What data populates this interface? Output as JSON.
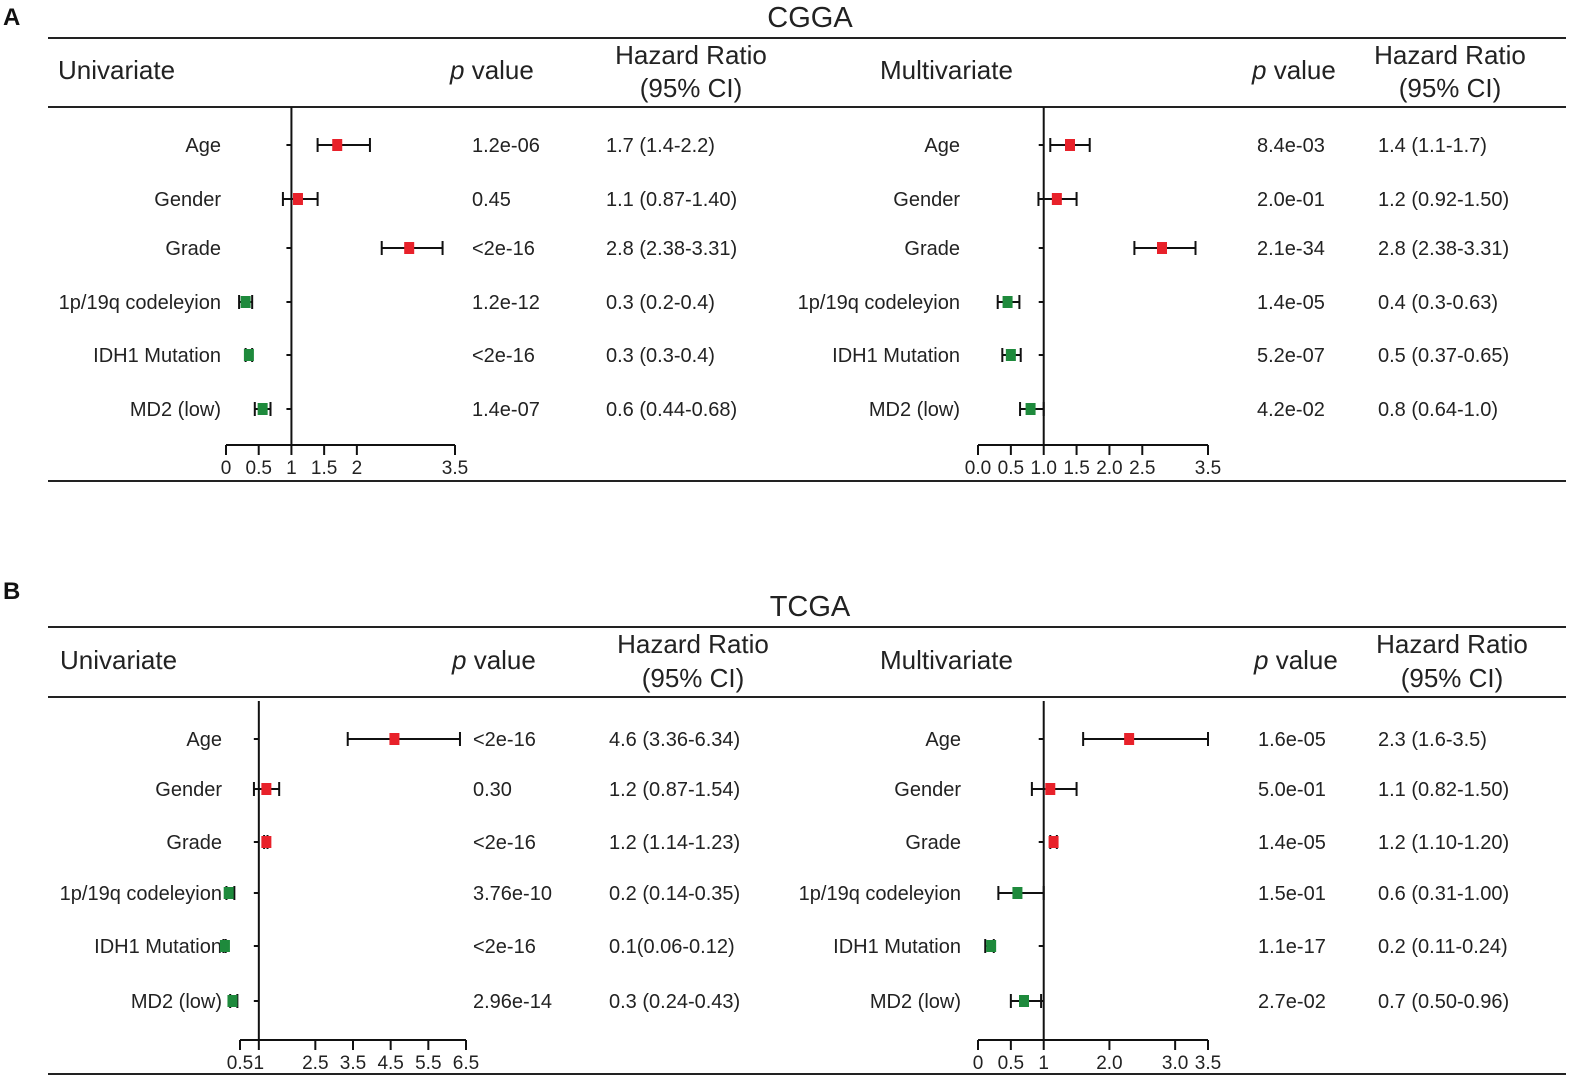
{
  "chart_data": [
    {
      "type": "forest",
      "panel": "A",
      "title": "CGGA",
      "columns": {
        "p": "value",
        "p_symbol": "p",
        "hr": [
          "Hazard Ratio",
          "(95% CI)"
        ]
      },
      "plots": [
        {
          "id": "cgga-uni",
          "header": "Univariate",
          "xlim": [
            0,
            3.5
          ],
          "ref": 1,
          "ticks": [
            "0",
            "0.5",
            "1",
            "1.5",
            "2",
            "3.5"
          ],
          "tick_values": [
            0,
            0.5,
            1,
            1.5,
            2,
            3.5
          ],
          "rows": [
            {
              "label": "Age",
              "hr": 1.7,
              "lo": 1.4,
              "hi": 2.2,
              "p": "1.2e-06",
              "ci_text": "1.7 (1.4-2.2)",
              "color": "#e8212a"
            },
            {
              "label": "Gender",
              "hr": 1.1,
              "lo": 0.87,
              "hi": 1.4,
              "p": "0.45",
              "ci_text": "1.1 (0.87-1.40)",
              "color": "#e8212a"
            },
            {
              "label": "Grade",
              "hr": 2.8,
              "lo": 2.38,
              "hi": 3.31,
              "p": "<2e-16",
              "ci_text": "2.8 (2.38-3.31)",
              "color": "#e8212a"
            },
            {
              "label": "1p/19q codeleyion",
              "hr": 0.3,
              "lo": 0.2,
              "hi": 0.4,
              "p": "1.2e-12",
              "ci_text": "0.3 (0.2-0.4)",
              "color": "#1e8a3c"
            },
            {
              "label": "IDH1 Mutation",
              "hr": 0.35,
              "lo": 0.3,
              "hi": 0.4,
              "p": "<2e-16",
              "ci_text": "0.3 (0.3-0.4)",
              "color": "#1e8a3c"
            },
            {
              "label": "MD2 (low)",
              "hr": 0.56,
              "lo": 0.44,
              "hi": 0.68,
              "p": "1.4e-07",
              "ci_text": "0.6 (0.44-0.68)",
              "color": "#1e8a3c"
            }
          ]
        },
        {
          "id": "cgga-multi",
          "header": "Multivariate",
          "xlim": [
            0,
            3.5
          ],
          "ref": 1,
          "ticks": [
            "0.0",
            "0.5",
            "1.0",
            "1.5",
            "2.0",
            "2.5",
            "3.5"
          ],
          "tick_values": [
            0,
            0.5,
            1,
            1.5,
            2,
            2.5,
            3.5
          ],
          "rows": [
            {
              "label": "Age",
              "hr": 1.4,
              "lo": 1.1,
              "hi": 1.7,
              "p": "8.4e-03",
              "ci_text": "1.4 (1.1-1.7)",
              "color": "#e8212a"
            },
            {
              "label": "Gender",
              "hr": 1.2,
              "lo": 0.92,
              "hi": 1.5,
              "p": "2.0e-01",
              "ci_text": "1.2 (0.92-1.50)",
              "color": "#e8212a"
            },
            {
              "label": "Grade",
              "hr": 2.8,
              "lo": 2.38,
              "hi": 3.31,
              "p": "2.1e-34",
              "ci_text": "2.8 (2.38-3.31)",
              "color": "#e8212a"
            },
            {
              "label": "1p/19q codeleyion",
              "hr": 0.45,
              "lo": 0.3,
              "hi": 0.63,
              "p": "1.4e-05",
              "ci_text": "0.4 (0.3-0.63)",
              "color": "#1e8a3c"
            },
            {
              "label": "IDH1 Mutation",
              "hr": 0.5,
              "lo": 0.37,
              "hi": 0.65,
              "p": "5.2e-07",
              "ci_text": "0.5 (0.37-0.65)",
              "color": "#1e8a3c"
            },
            {
              "label": "MD2 (low)",
              "hr": 0.8,
              "lo": 0.64,
              "hi": 1.0,
              "p": "4.2e-02",
              "ci_text": "0.8 (0.64-1.0)",
              "color": "#1e8a3c"
            }
          ]
        }
      ]
    },
    {
      "type": "forest",
      "panel": "B",
      "title": "TCGA",
      "columns": {
        "p": "value",
        "p_symbol": "p",
        "hr": [
          "Hazard Ratio",
          "(95% CI)"
        ]
      },
      "plots": [
        {
          "id": "tcga-uni",
          "header": "Univariate",
          "xlim": [
            0.5,
            6.5
          ],
          "ref": 1,
          "ticks": [
            "0.5",
            "1",
            "2.5",
            "3.5",
            "4.5",
            "5.5",
            "6.5"
          ],
          "tick_values": [
            0.5,
            1,
            2.5,
            3.5,
            4.5,
            5.5,
            6.5
          ],
          "rows": [
            {
              "label": "Age",
              "hr": 4.6,
              "lo": 3.36,
              "hi": 6.34,
              "p": "<2e-16",
              "ci_text": "4.6 (3.36-6.34)",
              "color": "#e8212a"
            },
            {
              "label": "Gender",
              "hr": 1.2,
              "lo": 0.87,
              "hi": 1.54,
              "p": "0.30",
              "ci_text": "1.2 (0.87-1.54)",
              "color": "#e8212a"
            },
            {
              "label": "Grade",
              "hr": 1.2,
              "lo": 1.14,
              "hi": 1.23,
              "p": "<2e-16",
              "ci_text": "1.2 (1.14-1.23)",
              "color": "#e8212a"
            },
            {
              "label": "1p/19q codeleyion",
              "hr": 0.2,
              "lo": 0.14,
              "hi": 0.35,
              "p": "3.76e-10",
              "ci_text": "0.2 (0.14-0.35)",
              "color": "#1e8a3c"
            },
            {
              "label": "IDH1 Mutation",
              "hr": 0.1,
              "lo": 0.06,
              "hi": 0.12,
              "p": "<2e-16",
              "ci_text": "0.1(0.06-0.12)",
              "color": "#1e8a3c"
            },
            {
              "label": "MD2 (low)",
              "hr": 0.3,
              "lo": 0.24,
              "hi": 0.43,
              "p": "2.96e-14",
              "ci_text": "0.3 (0.24-0.43)",
              "color": "#1e8a3c"
            }
          ]
        },
        {
          "id": "tcga-multi",
          "header": "Multivariate",
          "xlim": [
            0,
            3.5
          ],
          "ref": 1,
          "ticks": [
            "0",
            "0.5",
            "1",
            "2.0",
            "3.0",
            "3.5"
          ],
          "tick_values": [
            0,
            0.5,
            1,
            2,
            3,
            3.5
          ],
          "rows": [
            {
              "label": "Age",
              "hr": 2.3,
              "lo": 1.6,
              "hi": 3.5,
              "p": "1.6e-05",
              "ci_text": "2.3 (1.6-3.5)",
              "color": "#e8212a"
            },
            {
              "label": "Gender",
              "hr": 1.1,
              "lo": 0.82,
              "hi": 1.5,
              "p": "5.0e-01",
              "ci_text": "1.1 (0.82-1.50)",
              "color": "#e8212a"
            },
            {
              "label": "Grade",
              "hr": 1.15,
              "lo": 1.1,
              "hi": 1.2,
              "p": "1.4e-05",
              "ci_text": "1.2 (1.10-1.20)",
              "color": "#e8212a"
            },
            {
              "label": "1p/19q codeleyion",
              "hr": 0.6,
              "lo": 0.31,
              "hi": 1.0,
              "p": "1.5e-01",
              "ci_text": "0.6 (0.31-1.00)",
              "color": "#1e8a3c"
            },
            {
              "label": "IDH1 Mutation",
              "hr": 0.2,
              "lo": 0.11,
              "hi": 0.24,
              "p": "1.1e-17",
              "ci_text": "0.2 (0.11-0.24)",
              "color": "#1e8a3c"
            },
            {
              "label": "MD2 (low)",
              "hr": 0.7,
              "lo": 0.5,
              "hi": 0.96,
              "p": "2.7e-02",
              "ci_text": "0.7 (0.50-0.96)",
              "color": "#1e8a3c"
            }
          ]
        }
      ]
    }
  ]
}
